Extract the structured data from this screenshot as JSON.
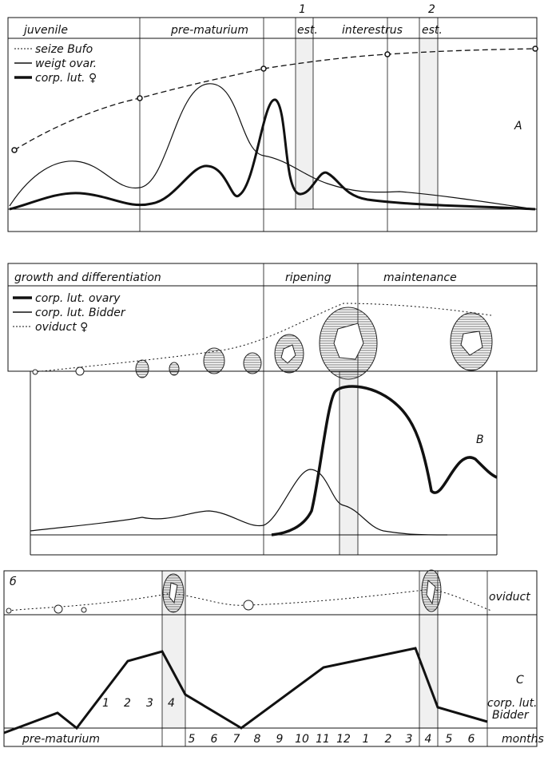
{
  "panel_a": {
    "phases": [
      "juvenile",
      "pre-maturium",
      "est.",
      "interestrus",
      "est."
    ],
    "estrus_numbers": [
      "1",
      "2"
    ],
    "legend": [
      "seize Bufo",
      "weigt ovar.",
      "corp. lut. ♀"
    ],
    "label": "A"
  },
  "panel_b": {
    "phases": [
      "growth and differentiation",
      "ripening",
      "maintenance"
    ],
    "legend": [
      "corp. lut. ovary",
      "corp. lut. Bidder",
      "oviduct ♀"
    ],
    "label": "B"
  },
  "panel_c": {
    "corner": "б",
    "oviduct": "oviduct",
    "label": "C",
    "corp_lut": [
      "corp. lut.",
      "Bidder"
    ],
    "inner_months": [
      "1",
      "2",
      "3",
      "4"
    ],
    "phase": "pre-maturium",
    "months": [
      "5",
      "6",
      "7",
      "8",
      "9",
      "10",
      "11",
      "12",
      "1",
      "2",
      "3",
      "4",
      "5",
      "6"
    ],
    "unit": "months"
  }
}
